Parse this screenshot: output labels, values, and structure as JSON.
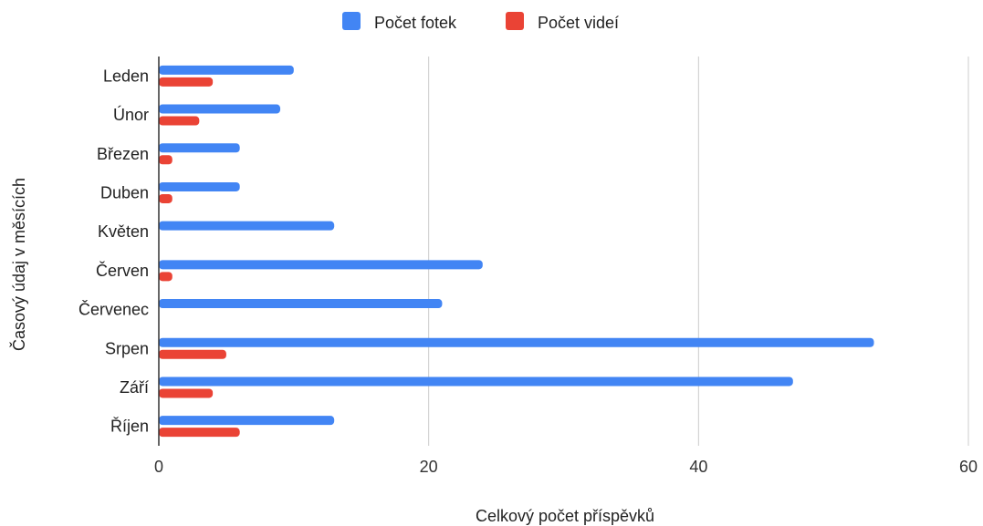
{
  "chart_data": {
    "type": "bar",
    "orientation": "horizontal",
    "title": "",
    "xlabel": "Celkový počet příspěvků",
    "ylabel": "Časový údaj v měsících",
    "categories": [
      "Leden",
      "Únor",
      "Březen",
      "Duben",
      "Květen",
      "Červen",
      "Červenec",
      "Srpen",
      "Září",
      "Říjen"
    ],
    "series": [
      {
        "name": "Počet fotek",
        "color": "#4285f4",
        "values": [
          10,
          9,
          6,
          6,
          13,
          24,
          21,
          53,
          47,
          13
        ]
      },
      {
        "name": "Počet videí",
        "color": "#ea4335",
        "values": [
          4,
          3,
          1,
          1,
          0,
          1,
          0,
          5,
          4,
          6
        ]
      }
    ],
    "xlim": [
      0,
      60
    ],
    "xticks": [
      0,
      20,
      40,
      60
    ],
    "grid": true,
    "legend": "top-center"
  }
}
